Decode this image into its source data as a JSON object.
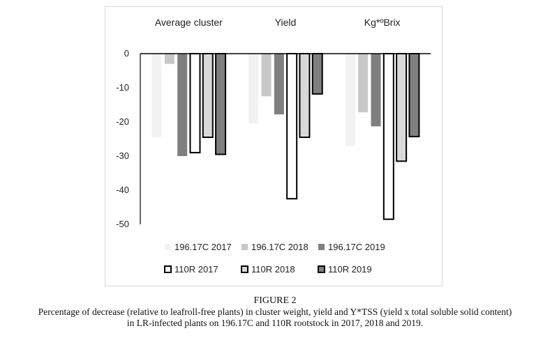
{
  "chart_data": {
    "type": "bar",
    "categories": [
      "Average cluster",
      "Yield",
      "Kg*ºBrix"
    ],
    "series": [
      {
        "name": "196.17C 2017",
        "values": [
          -24.5,
          -20.5,
          -27
        ],
        "fill": "#f2f2f2",
        "stroke": "none"
      },
      {
        "name": "196.17C 2018",
        "values": [
          -3,
          -12.5,
          -17.2
        ],
        "fill": "#c8c8c8",
        "stroke": "none"
      },
      {
        "name": "196.17C 2019",
        "values": [
          -30,
          -17.8,
          -21.3
        ],
        "fill": "#7f7f7f",
        "stroke": "none"
      },
      {
        "name": "110R 2017",
        "values": [
          -29,
          -42.5,
          -48.5
        ],
        "fill": "#ffffff",
        "stroke": "#000000"
      },
      {
        "name": "110R 2018",
        "values": [
          -24.5,
          -24.5,
          -31.5
        ],
        "fill": "#d9d9d9",
        "stroke": "#000000"
      },
      {
        "name": "110R 2019",
        "values": [
          -29.5,
          -11.8,
          -24.3
        ],
        "fill": "#7f7f7f",
        "stroke": "#000000"
      }
    ],
    "yticks": [
      0,
      -10,
      -20,
      -30,
      -40,
      -50
    ],
    "ylim": [
      -50,
      0
    ],
    "legend_position": "bottom",
    "grid": false
  },
  "caption": {
    "figure_label": "FIGURE 2",
    "lines": [
      "Percentage of decrease (relative to leafroll-free plants) in cluster weight, yield and Y*TSS (yield x total soluble solid content)",
      "in LR-infected plants on 196.17C and 110R rootstock in 2017, 2018 and 2019."
    ]
  }
}
